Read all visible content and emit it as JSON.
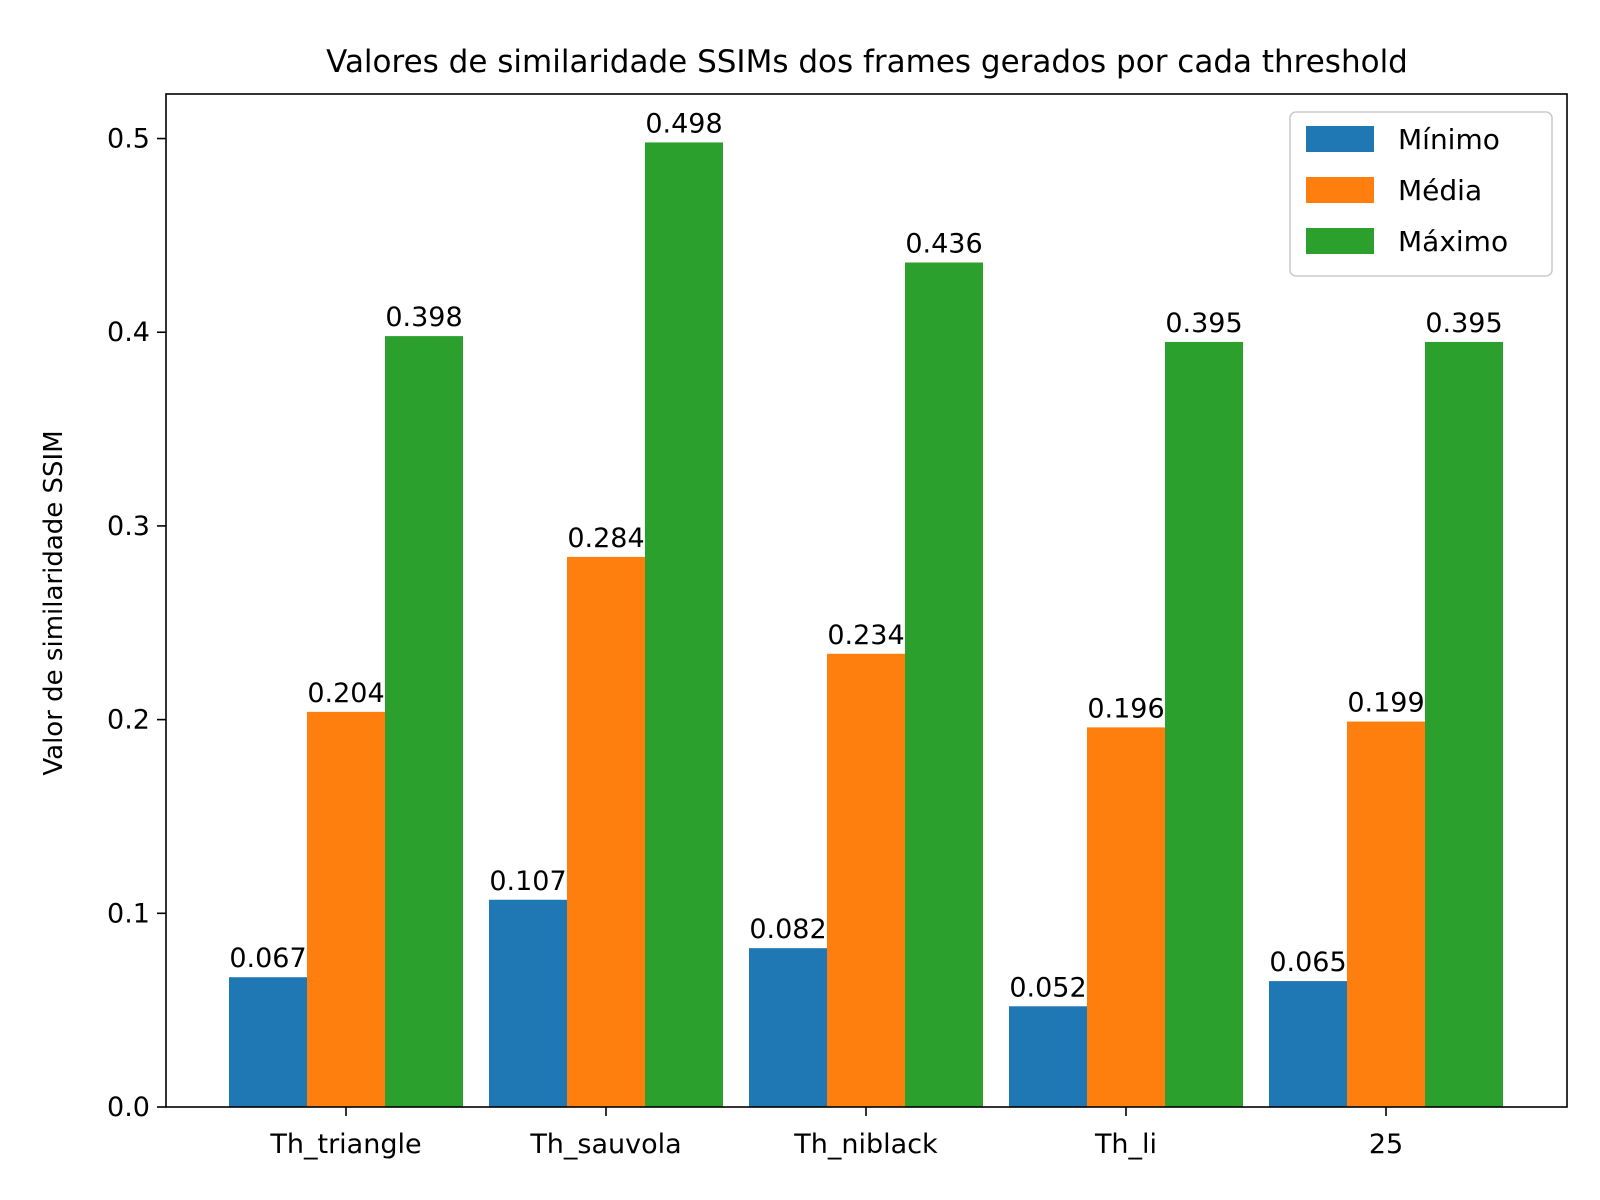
{
  "chart_data": {
    "type": "bar",
    "title": "Valores de similaridade SSIMs dos frames gerados por cada threshold",
    "xlabel": "",
    "ylabel": "Valor de similaridade SSIM",
    "categories": [
      "Th_triangle",
      "Th_sauvola",
      "Th_niblack",
      "Th_li",
      "25"
    ],
    "series": [
      {
        "name": "Mínimo",
        "color": "#1f77b4",
        "values": [
          0.067,
          0.107,
          0.082,
          0.052,
          0.065
        ],
        "labels": [
          "0.067",
          "0.107",
          "0.082",
          "0.052",
          "0.065"
        ]
      },
      {
        "name": "Média",
        "color": "#ff7f0e",
        "values": [
          0.204,
          0.284,
          0.234,
          0.196,
          0.199
        ],
        "labels": [
          "0.204",
          "0.284",
          "0.234",
          "0.196",
          "0.199"
        ]
      },
      {
        "name": "Máximo",
        "color": "#2ca02c",
        "values": [
          0.398,
          0.498,
          0.436,
          0.395,
          0.395
        ],
        "labels": [
          "0.398",
          "0.498",
          "0.436",
          "0.395",
          "0.395"
        ]
      }
    ],
    "ylim": [
      0,
      0.523
    ],
    "yticks": [
      0.0,
      0.1,
      0.2,
      0.3,
      0.4,
      0.5
    ],
    "ytick_labels": [
      "0.0",
      "0.1",
      "0.2",
      "0.3",
      "0.4",
      "0.5"
    ],
    "grid": false,
    "legend_position": "top-right"
  }
}
